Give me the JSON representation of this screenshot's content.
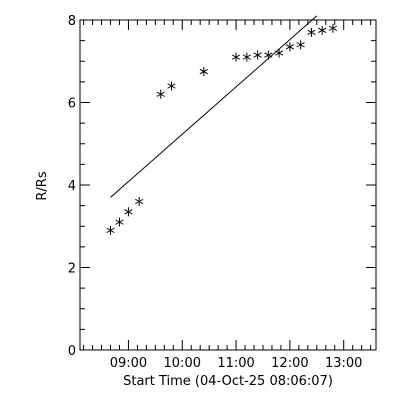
{
  "chart_data": {
    "type": "scatter",
    "xlabel": "Start Time (04-Oct-25 08:06:07)",
    "ylabel": "R/Rs",
    "xlim": [
      "08:06",
      "13:36"
    ],
    "ylim": [
      0,
      8
    ],
    "x_ticks": [
      "09:00",
      "10:00",
      "11:00",
      "12:00",
      "13:00"
    ],
    "y_ticks": [
      0,
      2,
      4,
      6,
      8
    ],
    "x_minor_per_major": 6,
    "y_minor_per_major": 4,
    "grid": false,
    "marker": "asterisk",
    "points": [
      {
        "x": "08:40",
        "y": 2.9
      },
      {
        "x": "08:50",
        "y": 3.1
      },
      {
        "x": "09:00",
        "y": 3.35
      },
      {
        "x": "09:12",
        "y": 3.6
      },
      {
        "x": "09:36",
        "y": 6.2
      },
      {
        "x": "09:48",
        "y": 6.4
      },
      {
        "x": "10:24",
        "y": 6.75
      },
      {
        "x": "11:00",
        "y": 7.1
      },
      {
        "x": "11:12",
        "y": 7.1
      },
      {
        "x": "11:24",
        "y": 7.15
      },
      {
        "x": "11:36",
        "y": 7.15
      },
      {
        "x": "11:48",
        "y": 7.2
      },
      {
        "x": "12:00",
        "y": 7.35
      },
      {
        "x": "12:12",
        "y": 7.4
      },
      {
        "x": "12:24",
        "y": 7.7
      },
      {
        "x": "12:36",
        "y": 7.75
      },
      {
        "x": "12:48",
        "y": 7.8
      }
    ],
    "fit_line": [
      {
        "x": "08:40",
        "y": 3.7
      },
      {
        "x": "12:30",
        "y": 8.1
      }
    ]
  }
}
